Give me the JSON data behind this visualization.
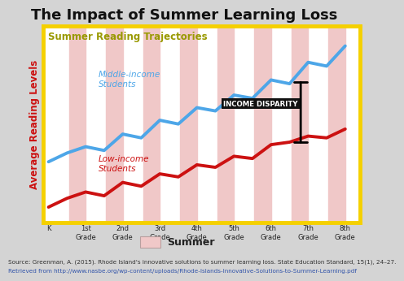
{
  "title": "The Impact of Summer Learning Loss",
  "subtitle": "Summer Reading Trajectories",
  "xlabel_grades": [
    "K",
    "1st\nGrade",
    "2nd\nGrade",
    "3rd\nGrade",
    "4th\nGrade",
    "5th\nGrade",
    "6th\nGrade",
    "7th\nGrade",
    "8th\nGrade"
  ],
  "ylabel": "Average Reading Levels",
  "middle_income_label": "Middle-income\nStudents",
  "low_income_label": "Low-income\nStudents",
  "income_disparity_label": "INCOME DISPARITY",
  "summer_label": "Summer",
  "source_line1": "Source: Greenman, A. (2015). Rhode Island's innovative solutions to summer learning loss. State Education Standard, 15(1), 24–27.",
  "source_line2": "Retrieved from http://www.nasbe.org/wp-content/uploads/Rhode-Islands-Innovative-Solutions-to-Summer-Learning.pdf",
  "bg_color": "#d4d4d4",
  "chart_bg_color": "#ffffff",
  "box_border_color": "#f5d000",
  "summer_stripe_color": "#f0c8c8",
  "middle_color": "#4da6e8",
  "low_color": "#cc1111",
  "disparity_box_color": "#111111",
  "disparity_text_color": "#ffffff",
  "title_fontsize": 13,
  "subtitle_fontsize": 8.5,
  "ylabel_fontsize": 8.5,
  "label_fontsize": 7.5,
  "tick_fontsize": 6,
  "source_fontsize": 5.2,
  "middle_x": [
    0,
    0.5,
    1,
    1.5,
    2,
    2.5,
    3,
    3.5,
    4,
    4.5,
    5,
    5.5,
    6,
    6.5,
    7,
    7.5,
    8
  ],
  "middle_y": [
    2.8,
    3.15,
    3.4,
    3.25,
    3.9,
    3.75,
    4.45,
    4.3,
    4.95,
    4.82,
    5.45,
    5.32,
    6.05,
    5.9,
    6.75,
    6.6,
    7.4
  ],
  "low_x": [
    0,
    0.5,
    1,
    1.5,
    2,
    2.5,
    3,
    3.5,
    4,
    4.5,
    5,
    5.5,
    6,
    6.5,
    7,
    7.5,
    8
  ],
  "low_y": [
    1.0,
    1.35,
    1.6,
    1.45,
    1.98,
    1.83,
    2.32,
    2.2,
    2.68,
    2.58,
    3.02,
    2.93,
    3.48,
    3.58,
    3.82,
    3.75,
    4.1
  ],
  "ylim": [
    0.4,
    8.2
  ],
  "xlim": [
    -0.15,
    8.4
  ],
  "summer_spans": [
    [
      0.55,
      1.0
    ],
    [
      1.55,
      2.0
    ],
    [
      2.55,
      3.0
    ],
    [
      3.55,
      4.0
    ],
    [
      4.55,
      5.0
    ],
    [
      5.55,
      6.0
    ],
    [
      6.55,
      7.0
    ],
    [
      7.55,
      8.0
    ]
  ],
  "disp_x": 6.8,
  "disp_y_top": 6.05,
  "disp_y_bot": 3.48
}
